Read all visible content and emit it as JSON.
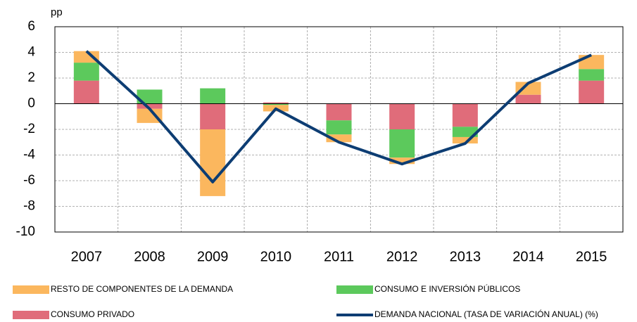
{
  "chart_data": {
    "type": "bar",
    "stacked": true,
    "y_label": "pp",
    "categories": [
      "2007",
      "2008",
      "2009",
      "2010",
      "2011",
      "2012",
      "2013",
      "2014",
      "2015"
    ],
    "series": [
      {
        "name": "CONSUMO PRIVADO",
        "color": "#e06c7a",
        "type": "bar",
        "values": [
          1.8,
          -0.4,
          -2.0,
          0.1,
          -1.3,
          -2.0,
          -1.8,
          0.7,
          1.8
        ]
      },
      {
        "name": "CONSUMO E INVERSIÓN PÚBLICOS",
        "color": "#5cc95c",
        "type": "bar",
        "values": [
          1.4,
          1.1,
          1.2,
          -0.1,
          -1.1,
          -2.2,
          -0.8,
          0.0,
          0.9
        ]
      },
      {
        "name": "RESTO DE COMPONENTES DE LA DEMANDA",
        "color": "#fbb75e",
        "type": "bar",
        "values": [
          0.9,
          -1.1,
          -5.2,
          -0.5,
          -0.6,
          -0.5,
          -0.5,
          1.0,
          1.1
        ]
      },
      {
        "name": "DEMANDA NACIONAL (TASA DE VARIACIÓN ANUAL) (%)",
        "color": "#0d3d73",
        "type": "line",
        "values": [
          4.1,
          -0.4,
          -6.1,
          -0.4,
          -3.0,
          -4.7,
          -3.1,
          1.6,
          3.8
        ]
      }
    ],
    "ylim": [
      -10,
      6
    ],
    "yticks": [
      -10,
      -8,
      -6,
      -4,
      -2,
      0,
      2,
      4,
      6
    ],
    "grid": true
  }
}
